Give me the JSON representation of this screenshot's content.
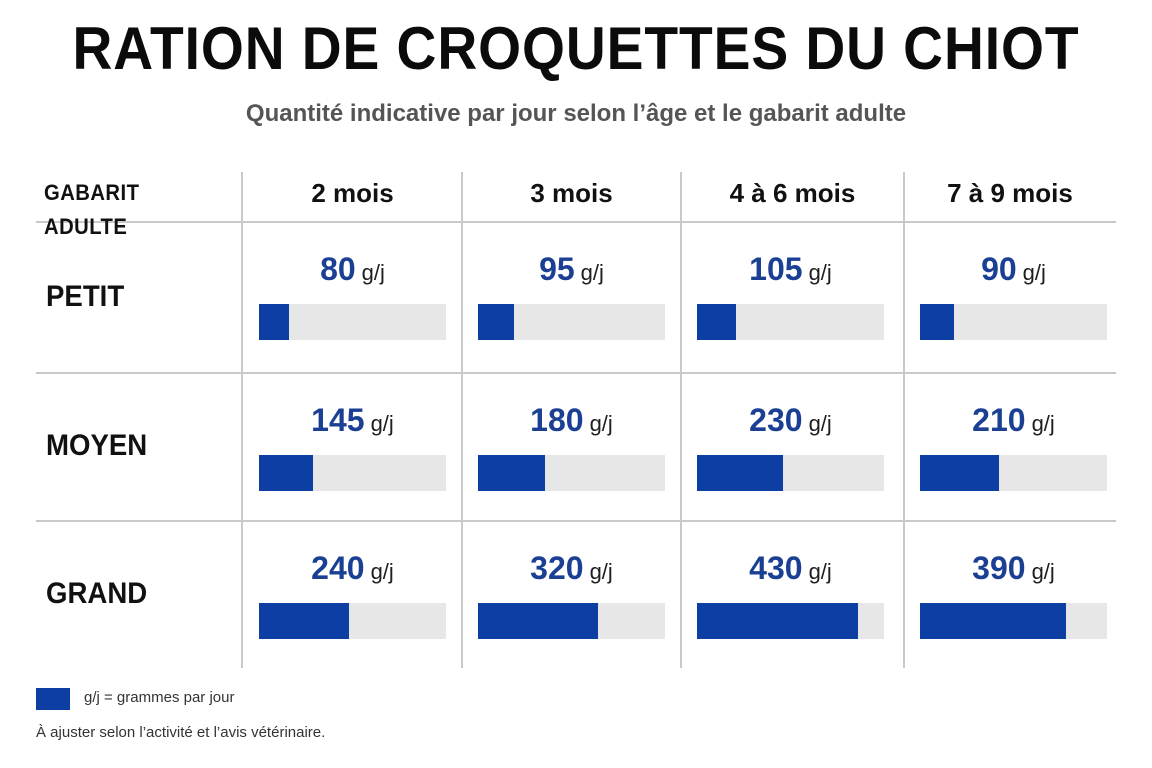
{
  "title": "RATION DE CROQUETTES DU CHIOT",
  "subtitle": "Quantité indicative par jour selon l’âge et le gabarit adulte",
  "colors": {
    "bar": "#0d3ea4",
    "track": "#e7e7e7",
    "value": "#1a3f93"
  },
  "chart_data": {
    "type": "table",
    "row_header": "GABARIT ADULTE",
    "columns": [
      "2 mois",
      "3 mois",
      "4 à 6 mois",
      "7 à 9 mois"
    ],
    "rows": [
      "PETIT",
      "MOYEN",
      "GRAND"
    ],
    "unit": "g/j",
    "values": [
      [
        80,
        95,
        105,
        90
      ],
      [
        145,
        180,
        230,
        210
      ],
      [
        240,
        320,
        430,
        390
      ]
    ],
    "bar_max": 500
  },
  "legend": {
    "text": "g/j = grammes par jour"
  },
  "note": "À ajuster selon l’activité et l’avis vétérinaire."
}
